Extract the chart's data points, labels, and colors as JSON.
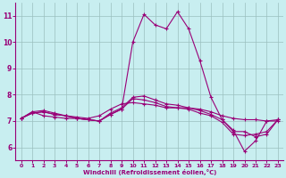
{
  "title": "",
  "xlabel": "Windchill (Refroidissement éolien,°C)",
  "ylabel": "",
  "bg_color": "#c8eef0",
  "line_color": "#990077",
  "grid_color": "#9bbfbf",
  "xlim": [
    -0.5,
    23.5
  ],
  "ylim": [
    5.5,
    11.5
  ],
  "xticks": [
    0,
    1,
    2,
    3,
    4,
    5,
    6,
    7,
    8,
    9,
    10,
    11,
    12,
    13,
    14,
    15,
    16,
    17,
    18,
    19,
    20,
    21,
    22,
    23
  ],
  "yticks": [
    6,
    7,
    8,
    9,
    10,
    11
  ],
  "series": [
    [
      7.1,
      7.35,
      7.2,
      7.15,
      7.1,
      7.1,
      7.05,
      7.0,
      7.25,
      7.45,
      10.0,
      11.05,
      10.65,
      10.5,
      11.15,
      10.5,
      9.3,
      7.9,
      7.05,
      6.65,
      5.85,
      6.25,
      7.0,
      7.05
    ],
    [
      7.1,
      7.3,
      7.35,
      7.25,
      7.2,
      7.15,
      7.1,
      7.2,
      7.45,
      7.65,
      7.7,
      7.65,
      7.6,
      7.5,
      7.5,
      7.5,
      7.45,
      7.35,
      7.2,
      7.1,
      7.05,
      7.05,
      7.0,
      7.0
    ],
    [
      7.1,
      7.3,
      7.35,
      7.25,
      7.2,
      7.1,
      7.05,
      7.0,
      7.25,
      7.45,
      7.85,
      7.8,
      7.7,
      7.55,
      7.5,
      7.45,
      7.3,
      7.2,
      6.95,
      6.5,
      6.45,
      6.5,
      6.6,
      7.05
    ],
    [
      7.1,
      7.35,
      7.4,
      7.3,
      7.2,
      7.1,
      7.05,
      7.0,
      7.3,
      7.5,
      7.9,
      7.95,
      7.8,
      7.65,
      7.6,
      7.5,
      7.4,
      7.25,
      7.05,
      6.6,
      6.6,
      6.4,
      6.5,
      7.05
    ]
  ]
}
